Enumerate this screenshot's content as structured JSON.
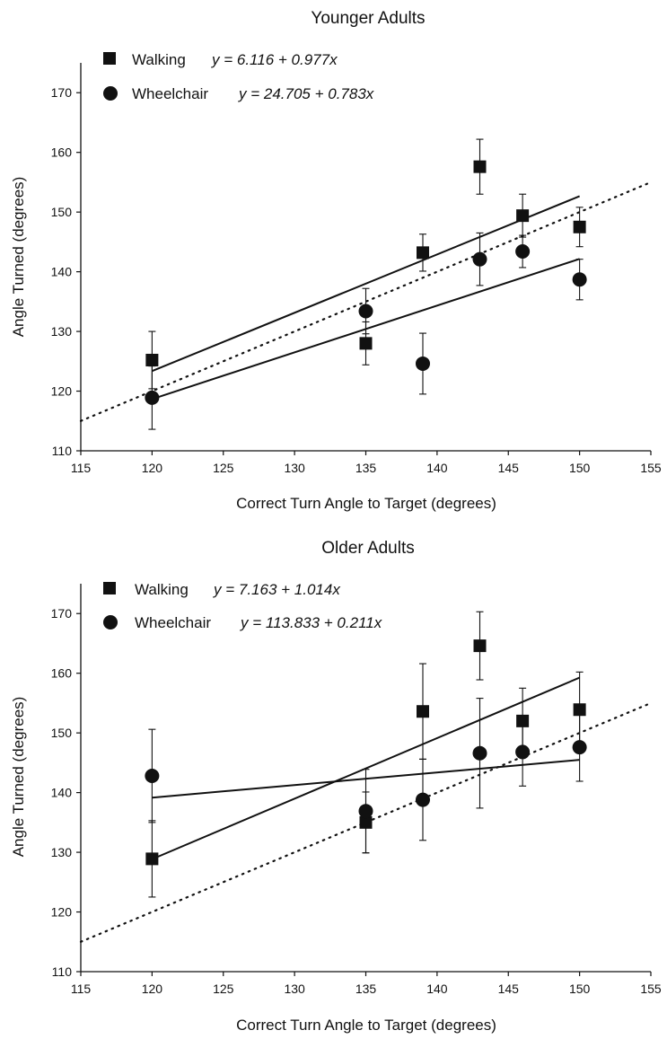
{
  "chart_data": [
    {
      "type": "scatter",
      "title": "Younger Adults",
      "xlabel": "Correct Turn Angle to Target (degrees)",
      "ylabel": "Angle Turned (degrees)",
      "xlim": [
        115,
        155
      ],
      "ylim": [
        110,
        175
      ],
      "x_ticks": [
        115,
        120,
        125,
        130,
        135,
        140,
        145,
        150,
        155
      ],
      "y_ticks": [
        110,
        120,
        130,
        140,
        150,
        160,
        170
      ],
      "grid": false,
      "legend_position": "top-left",
      "reference_line": {
        "style": "dotted",
        "slope": 1,
        "intercept": 0
      },
      "series": [
        {
          "name": "Walking",
          "equation": "y = 6.116 + 0.977x",
          "marker": "square",
          "fit": {
            "intercept": 6.116,
            "slope": 0.977
          },
          "x": [
            120,
            135,
            139,
            143,
            146,
            150
          ],
          "y": [
            125.2,
            128.0,
            143.2,
            157.6,
            149.4,
            147.5
          ],
          "error": [
            4.8,
            3.6,
            3.1,
            4.6,
            3.6,
            3.3
          ]
        },
        {
          "name": "Wheelchair",
          "equation": "y = 24.705 + 0.783x",
          "marker": "circle",
          "fit": {
            "intercept": 24.705,
            "slope": 0.783
          },
          "x": [
            120,
            135,
            139,
            143,
            146,
            150
          ],
          "y": [
            118.9,
            133.4,
            124.6,
            142.1,
            143.4,
            138.7
          ],
          "error": [
            5.3,
            3.8,
            5.1,
            4.4,
            2.7,
            3.4
          ]
        }
      ]
    },
    {
      "type": "scatter",
      "title": "Older Adults",
      "xlabel": "Correct Turn Angle to Target (degrees)",
      "ylabel": "Angle Turned (degrees)",
      "xlim": [
        115,
        155
      ],
      "ylim": [
        110,
        175
      ],
      "x_ticks": [
        115,
        120,
        125,
        130,
        135,
        140,
        145,
        150,
        155
      ],
      "y_ticks": [
        110,
        120,
        130,
        140,
        150,
        160,
        170
      ],
      "grid": false,
      "legend_position": "top-left",
      "reference_line": {
        "style": "dotted",
        "slope": 1,
        "intercept": 0
      },
      "series": [
        {
          "name": "Walking",
          "equation": "y = 7.163 + 1.014x",
          "marker": "square",
          "fit": {
            "intercept": 7.163,
            "slope": 1.014
          },
          "x": [
            120,
            135,
            139,
            143,
            146,
            150
          ],
          "y": [
            128.9,
            135.0,
            153.6,
            164.6,
            152.0,
            153.9
          ],
          "error": [
            6.4,
            5.1,
            8.0,
            5.7,
            5.5,
            6.3
          ]
        },
        {
          "name": "Wheelchair",
          "equation": "y = 113.833 + 0.211x",
          "marker": "circle",
          "fit": {
            "intercept": 113.833,
            "slope": 0.211
          },
          "x": [
            120,
            135,
            139,
            143,
            146,
            150
          ],
          "y": [
            142.8,
            136.9,
            138.8,
            146.6,
            146.8,
            147.6
          ],
          "error": [
            7.8,
            7.0,
            6.8,
            9.2,
            5.7,
            5.7
          ]
        }
      ]
    }
  ]
}
